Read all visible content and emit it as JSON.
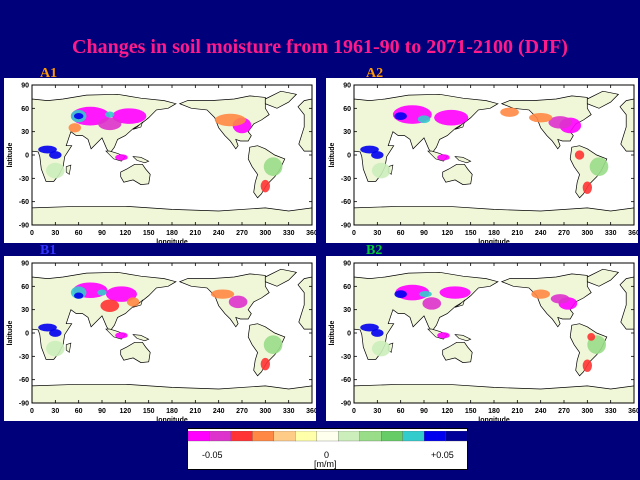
{
  "title": "Changes in soil moisture from 1961-90 to 2071-2100 (DJF)",
  "panels": [
    {
      "label": "A1",
      "label_color": "#ff9900"
    },
    {
      "label": "A2",
      "label_color": "#ff9900"
    },
    {
      "label": "B1",
      "label_color": "#3333ff"
    },
    {
      "label": "B2",
      "label_color": "#00cc33"
    }
  ],
  "axes": {
    "xlabel": "longitude",
    "ylabel": "latitude",
    "xticks": [
      "0",
      "30",
      "60",
      "90",
      "120",
      "150",
      "180",
      "210",
      "240",
      "270",
      "300",
      "330",
      "360"
    ],
    "yticks": [
      "90",
      "60",
      "30",
      "0",
      "-30",
      "-60",
      "-90"
    ]
  },
  "colorbar": {
    "colors": [
      "#ff00ff",
      "#dd33cc",
      "#ff3333",
      "#ff8844",
      "#ffcc88",
      "#ffffaa",
      "#ffffee",
      "#cceebb",
      "#99dd88",
      "#66cc66",
      "#33cccc",
      "#0000ee",
      "#000099"
    ],
    "tick_min": "-0.05",
    "tick_mid": "0",
    "tick_max": "+0.05",
    "unit": "[m/m]"
  }
}
